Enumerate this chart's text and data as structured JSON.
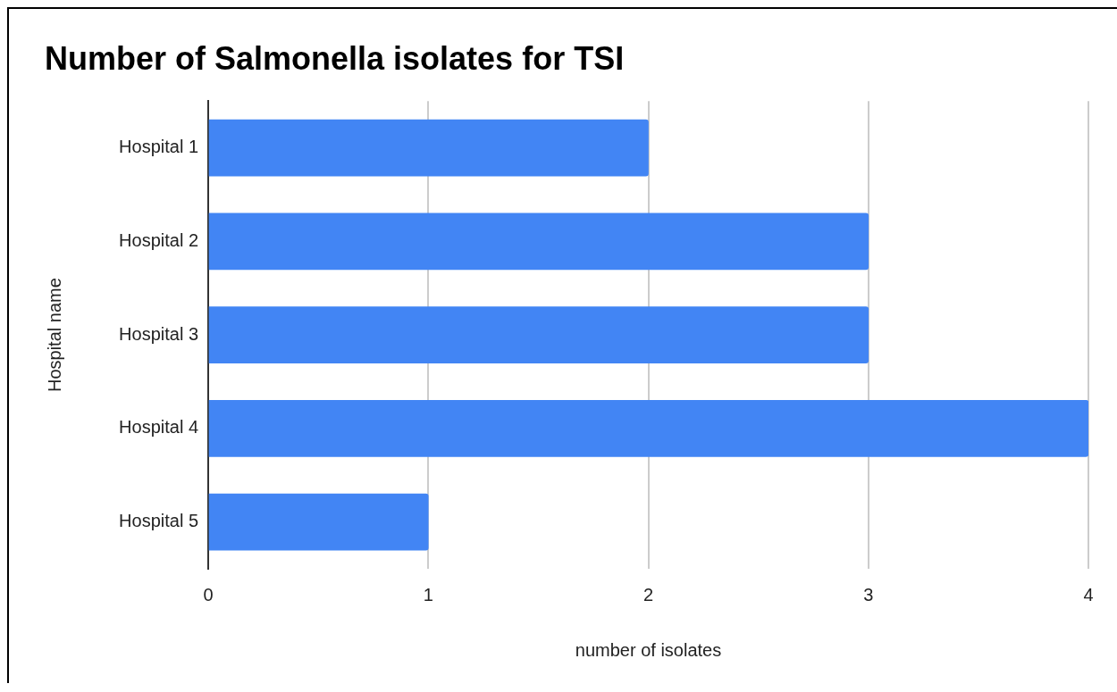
{
  "chart_data": {
    "type": "bar",
    "orientation": "horizontal",
    "title": "Number of Salmonella isolates for TSI",
    "xlabel": "number of isolates",
    "ylabel": "Hospital name",
    "categories": [
      "Hospital 1",
      "Hospital 2",
      "Hospital 3",
      "Hospital 4",
      "Hospital 5"
    ],
    "values": [
      2,
      3,
      3,
      4,
      1
    ],
    "color": "#4285f4",
    "xlim": [
      0,
      4
    ],
    "xticks": [
      0,
      1,
      2,
      3,
      4
    ],
    "grid": "x"
  }
}
